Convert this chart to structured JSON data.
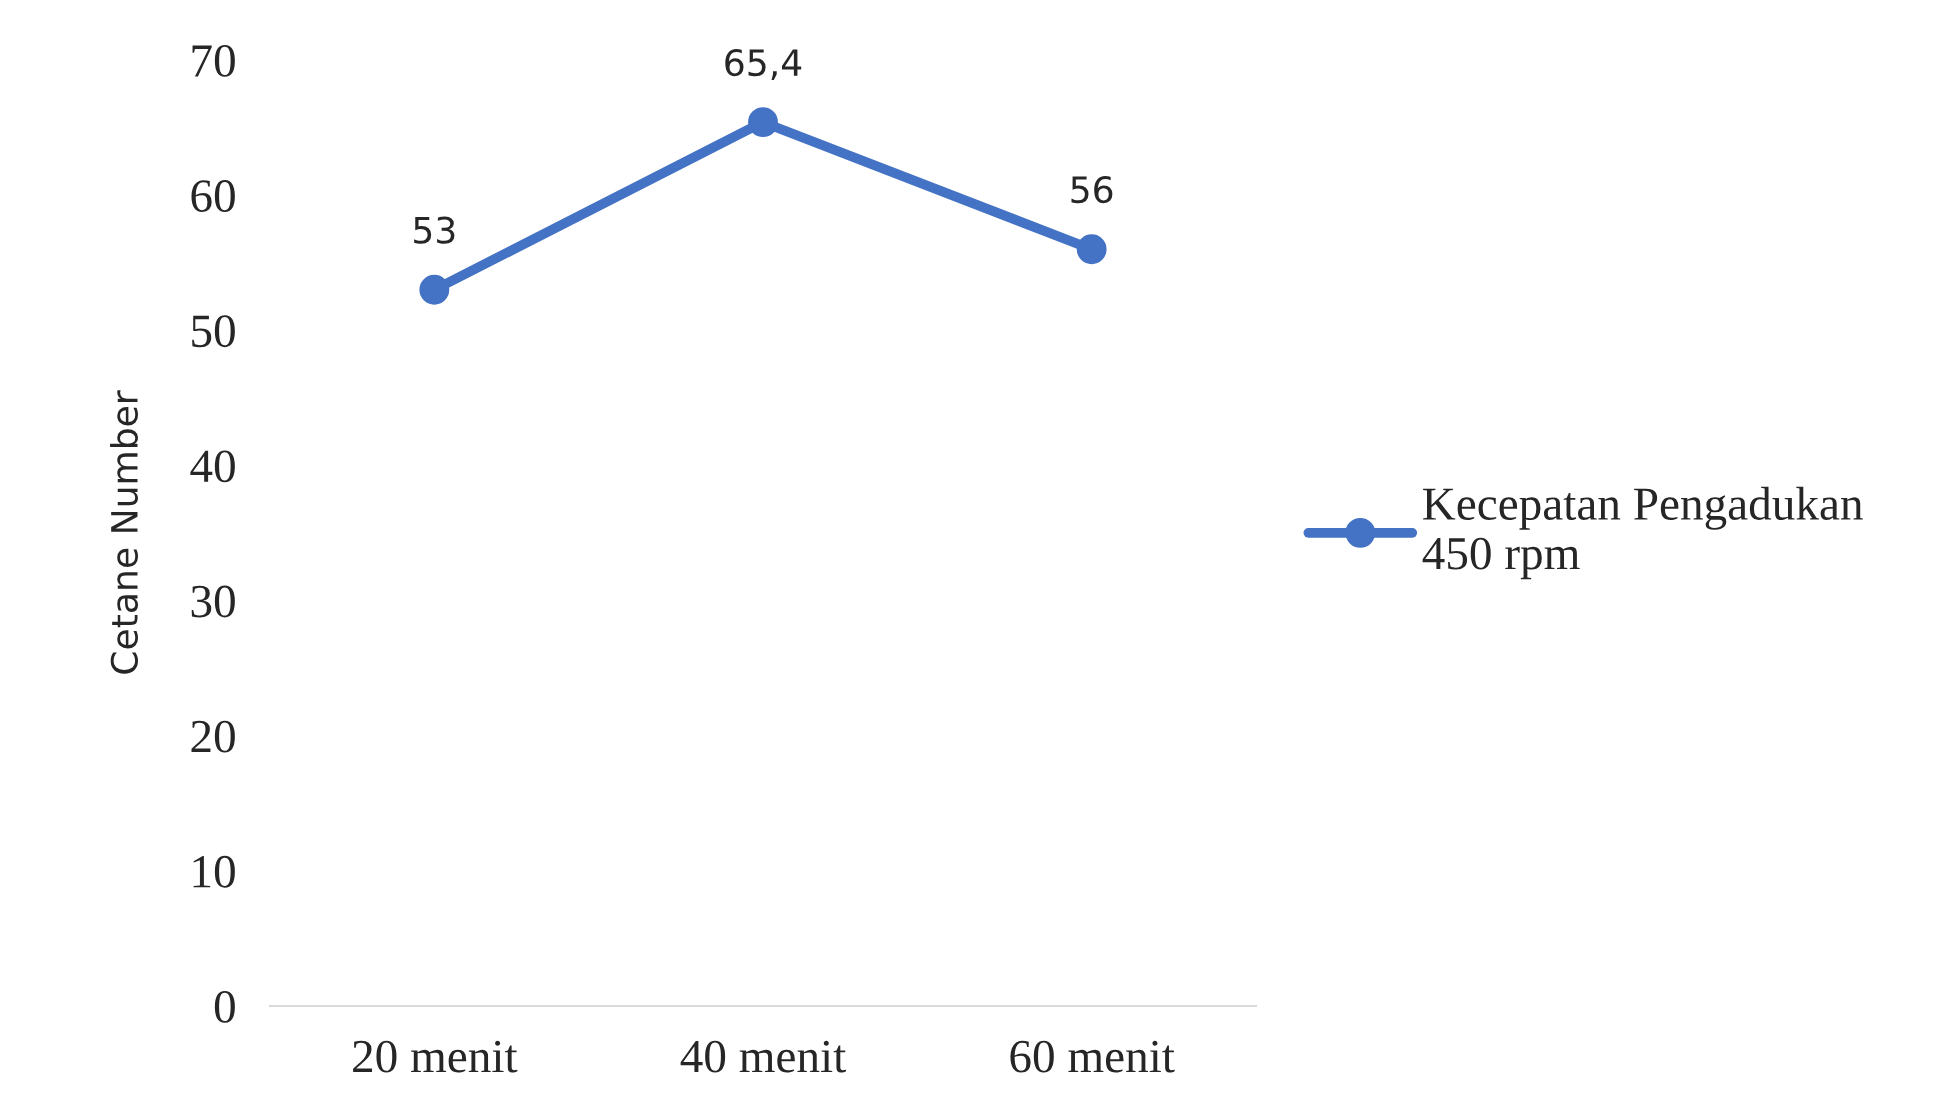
{
  "chart_data": {
    "type": "line",
    "ylabel": "Cetane Number",
    "categories": [
      "20 menit",
      "40 menit",
      "60 menit"
    ],
    "series": [
      {
        "name": "Kecepatan Pengadukan\n450 rpm",
        "color": "#4472c4",
        "values": [
          53,
          65.4,
          56
        ],
        "value_labels": [
          "53",
          "65,4",
          "56"
        ]
      }
    ],
    "ylim": [
      0,
      70
    ],
    "yticks": [
      0,
      10,
      20,
      30,
      40,
      50,
      60,
      70
    ],
    "grid": false,
    "legend": "right",
    "marker": "circle",
    "line_style": "solid"
  }
}
